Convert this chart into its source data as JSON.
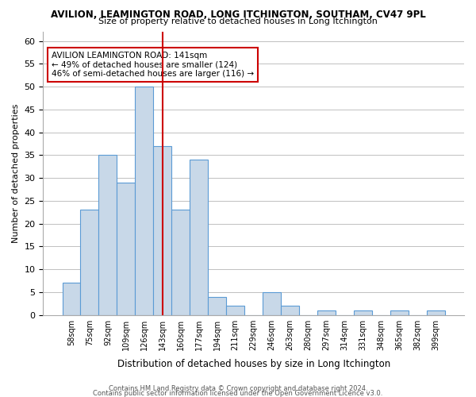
{
  "title": "AVILION, LEAMINGTON ROAD, LONG ITCHINGTON, SOUTHAM, CV47 9PL",
  "subtitle": "Size of property relative to detached houses in Long Itchington",
  "xlabel": "Distribution of detached houses by size in Long Itchington",
  "ylabel": "Number of detached properties",
  "footer_line1": "Contains HM Land Registry data © Crown copyright and database right 2024.",
  "footer_line2": "Contains public sector information licensed under the Open Government Licence v3.0.",
  "bar_labels": [
    "58sqm",
    "75sqm",
    "92sqm",
    "109sqm",
    "126sqm",
    "143sqm",
    "160sqm",
    "177sqm",
    "194sqm",
    "211sqm",
    "229sqm",
    "246sqm",
    "263sqm",
    "280sqm",
    "297sqm",
    "314sqm",
    "331sqm",
    "348sqm",
    "365sqm",
    "382sqm",
    "399sqm"
  ],
  "bar_values": [
    7,
    23,
    35,
    29,
    50,
    37,
    23,
    34,
    4,
    2,
    0,
    5,
    2,
    0,
    1,
    0,
    1,
    0,
    1,
    0,
    1
  ],
  "bar_color": "#c8d8e8",
  "bar_edge_color": "#5b9bd5",
  "vline_x": 5,
  "vline_color": "#cc0000",
  "annotation_title": "AVILION LEAMINGTON ROAD: 141sqm",
  "annotation_line1": "← 49% of detached houses are smaller (124)",
  "annotation_line2": "46% of semi-detached houses are larger (116) →",
  "annotation_box_color": "#ffffff",
  "annotation_border_color": "#cc0000",
  "ylim": [
    0,
    62
  ],
  "yticks": [
    0,
    5,
    10,
    15,
    20,
    25,
    30,
    35,
    40,
    45,
    50,
    55,
    60
  ],
  "background_color": "#ffffff",
  "grid_color": "#c0c0c0"
}
